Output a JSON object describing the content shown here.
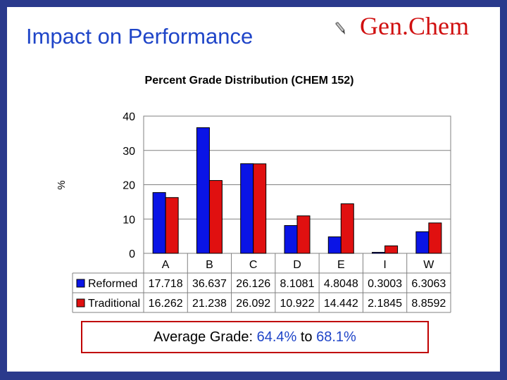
{
  "slide": {
    "title": "Impact on Performance",
    "logo_text": "Gen.Chem",
    "average": {
      "label": "Average Grade:",
      "from": "64.4%",
      "to_word": "to",
      "to": "68.1%"
    }
  },
  "colors": {
    "background": "#2a3a8c",
    "title": "#1f45c8",
    "logo": "#d01010",
    "reformed": "#0a14e6",
    "traditional": "#e01010",
    "box_border": "#c00000"
  },
  "chart_data": {
    "type": "bar",
    "title": "Percent Grade Distribution (CHEM 152)",
    "ylabel": "%",
    "xlabel": "",
    "ylim": [
      0,
      40
    ],
    "yticks": [
      0,
      10,
      20,
      30,
      40
    ],
    "grid": true,
    "legend": "data-table",
    "categories": [
      "A",
      "B",
      "C",
      "D",
      "E",
      "I",
      "W"
    ],
    "series": [
      {
        "name": "Reformed",
        "color": "#0a14e6",
        "values": [
          17.718,
          36.637,
          26.126,
          8.1081,
          4.8048,
          0.3003,
          6.3063
        ],
        "labels": [
          "17.718",
          "36.637",
          "26.126",
          "8.1081",
          "4.8048",
          "0.3003",
          "6.3063"
        ]
      },
      {
        "name": "Traditional",
        "color": "#e01010",
        "values": [
          16.262,
          21.238,
          26.092,
          10.922,
          14.442,
          2.1845,
          8.8592
        ],
        "labels": [
          "16.262",
          "21.238",
          "26.092",
          "10.922",
          "14.442",
          "2.1845",
          "8.8592"
        ]
      }
    ]
  }
}
